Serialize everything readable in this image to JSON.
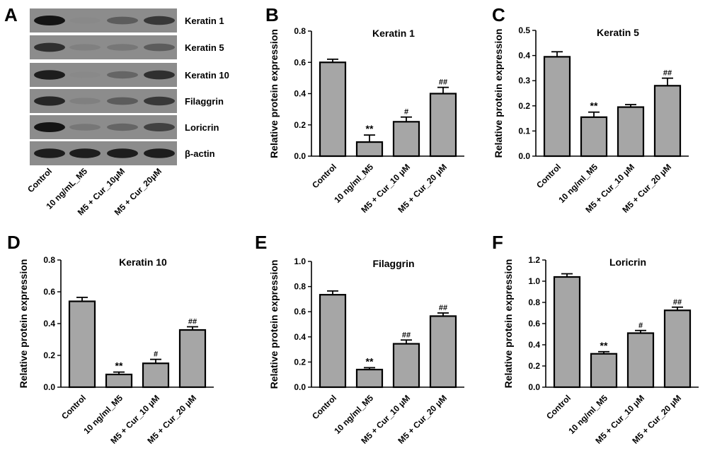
{
  "figure": {
    "blot": {
      "panel_label": "A",
      "bands": [
        "Keratin 1",
        "Keratin 5",
        "Keratin 10",
        "Filaggrin",
        "Loricrin",
        "β-actin"
      ],
      "lanes": [
        "Control",
        "10 ng/mL_M5",
        "M5 + Cur_10μM",
        "M5 + Cur_20μM"
      ]
    },
    "colors": {
      "bar_fill": "#a6a6a6",
      "bar_stroke": "#000000",
      "blot_bg": "#8c8c8c",
      "band": "#141414"
    }
  },
  "chart_data": [
    {
      "panel_label": "B",
      "type": "bar",
      "title": "Keratin 1",
      "xlabel": "",
      "ylabel": "Relative protein expression",
      "categories": [
        "Control",
        "10 ng/ml_M5",
        "M5 + Cur_10 μM",
        "M5 + Cur_20 μM"
      ],
      "values": [
        0.6,
        0.09,
        0.22,
        0.4
      ],
      "errors": [
        0.02,
        0.045,
        0.03,
        0.04
      ],
      "annotations": [
        "",
        "**",
        "#",
        "##"
      ],
      "ylim": [
        0,
        0.8
      ],
      "yticks": [
        "0.0",
        "0.2",
        "0.4",
        "0.6",
        "0.8"
      ]
    },
    {
      "panel_label": "C",
      "type": "bar",
      "title": "Keratin 5",
      "xlabel": "",
      "ylabel": "Relative protein expression",
      "categories": [
        "Control",
        "10 ng/ml_M5",
        "M5 + Cur_10 μM",
        "M5 + Cur_20 μM"
      ],
      "values": [
        0.395,
        0.155,
        0.195,
        0.28
      ],
      "errors": [
        0.02,
        0.02,
        0.01,
        0.03
      ],
      "annotations": [
        "",
        "**",
        "",
        "##"
      ],
      "ylim": [
        0,
        0.5
      ],
      "yticks": [
        "0.0",
        "0.1",
        "0.2",
        "0.3",
        "0.4",
        "0.5"
      ]
    },
    {
      "panel_label": "D",
      "type": "bar",
      "title": "Keratin 10",
      "xlabel": "",
      "ylabel": "Relative protein expression",
      "categories": [
        "Control",
        "10 ng/ml_M5",
        "M5 + Cur_10 μM",
        "M5 + Cur_20 μM"
      ],
      "values": [
        0.54,
        0.08,
        0.15,
        0.36
      ],
      "errors": [
        0.025,
        0.015,
        0.025,
        0.02
      ],
      "annotations": [
        "",
        "**",
        "#",
        "##"
      ],
      "ylim": [
        0,
        0.8
      ],
      "yticks": [
        "0.0",
        "0.2",
        "0.4",
        "0.6",
        "0.8"
      ]
    },
    {
      "panel_label": "E",
      "type": "bar",
      "title": "Filaggrin",
      "xlabel": "",
      "ylabel": "Relative protein expression",
      "categories": [
        "Control",
        "10 ng/ml_M5",
        "M5 + Cur_10 μM",
        "M5 + Cur_20 μM"
      ],
      "values": [
        0.735,
        0.14,
        0.345,
        0.565
      ],
      "errors": [
        0.03,
        0.015,
        0.03,
        0.025
      ],
      "annotations": [
        "",
        "**",
        "##",
        "##"
      ],
      "ylim": [
        0,
        1.0
      ],
      "yticks": [
        "0.0",
        "0.2",
        "0.4",
        "0.6",
        "0.8",
        "1.0"
      ]
    },
    {
      "panel_label": "F",
      "type": "bar",
      "title": "Loricrin",
      "xlabel": "",
      "ylabel": "Relative protein expression",
      "categories": [
        "Control",
        "10 ng/ml_M5",
        "M5 + Cur_10 μM",
        "M5 + Cur_20 μM"
      ],
      "values": [
        1.04,
        0.315,
        0.51,
        0.725
      ],
      "errors": [
        0.03,
        0.02,
        0.025,
        0.03
      ],
      "annotations": [
        "",
        "**",
        "#",
        "##"
      ],
      "ylim": [
        0,
        1.2
      ],
      "yticks": [
        "0.0",
        "0.2",
        "0.4",
        "0.6",
        "0.8",
        "1.0",
        "1.2"
      ]
    }
  ]
}
